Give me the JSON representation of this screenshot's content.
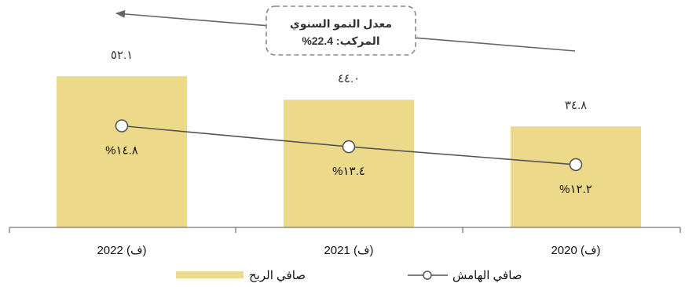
{
  "chart_data": {
    "type": "bar",
    "categories": [
      "2022 (ف)",
      "2021 (ف)",
      "2020 (ف)"
    ],
    "series": [
      {
        "name": "صافي الربح",
        "type": "bar",
        "values": [
          52.1,
          44.0,
          34.8
        ],
        "value_labels": [
          "٥٢.١",
          "٤٤.٠",
          "٣٤.٨"
        ]
      },
      {
        "name": "صافي الهامش",
        "type": "line",
        "values": [
          14.8,
          13.4,
          12.2
        ],
        "value_labels": [
          "%١٤.٨",
          "%١٣.٤",
          "%١٢.٢"
        ]
      }
    ],
    "annotation": {
      "line1": "معدل النمو السنوي",
      "line2": "المركب: 22.4%"
    },
    "ylim": [
      0,
      60
    ],
    "grid": false,
    "legend_position": "bottom",
    "colors": {
      "bar": "#EDD98A",
      "line": "#555555",
      "marker_fill": "#ffffff",
      "axis": "#555555"
    }
  }
}
